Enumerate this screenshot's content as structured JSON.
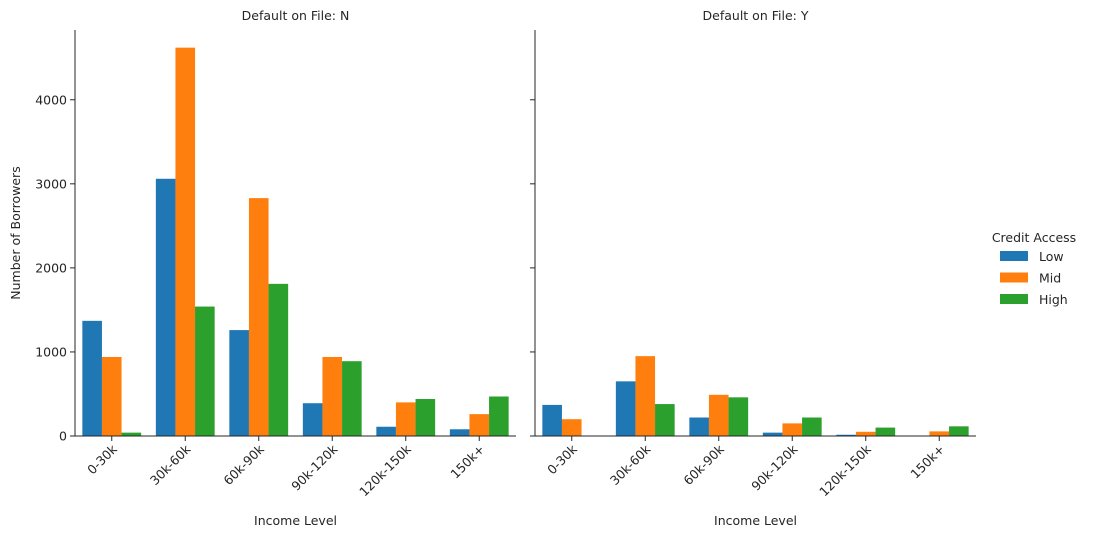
{
  "chart_data": {
    "type": "bar",
    "categories": [
      "0-30k",
      "30k-60k",
      "60k-90k",
      "90k-120k",
      "120k-150k",
      "150k+"
    ],
    "xlabel": "Income Level",
    "ylabel": "Number of Borrowers",
    "ylim": [
      0,
      4830
    ],
    "yticks": [
      0,
      1000,
      2000,
      3000,
      4000
    ],
    "legend": {
      "title": "Credit Access",
      "placement": "right",
      "entries": [
        "Low",
        "Mid",
        "High"
      ]
    },
    "colors": {
      "Low": "#1f77b4",
      "Mid": "#ff7f0e",
      "High": "#2ca02c"
    },
    "panels": [
      {
        "title": "Default on File: N",
        "series": [
          {
            "name": "Low",
            "values": [
              1370,
              3060,
              1260,
              390,
              110,
              80
            ]
          },
          {
            "name": "Mid",
            "values": [
              940,
              4620,
              2830,
              940,
              400,
              260
            ]
          },
          {
            "name": "High",
            "values": [
              40,
              1540,
              1810,
              890,
              440,
              470
            ]
          }
        ]
      },
      {
        "title": "Default on File: Y",
        "series": [
          {
            "name": "Low",
            "values": [
              370,
              650,
              220,
              40,
              15,
              5
            ]
          },
          {
            "name": "Mid",
            "values": [
              200,
              950,
              490,
              150,
              50,
              55
            ]
          },
          {
            "name": "High",
            "values": [
              0,
              380,
              460,
              220,
              100,
              115
            ]
          }
        ]
      }
    ]
  }
}
